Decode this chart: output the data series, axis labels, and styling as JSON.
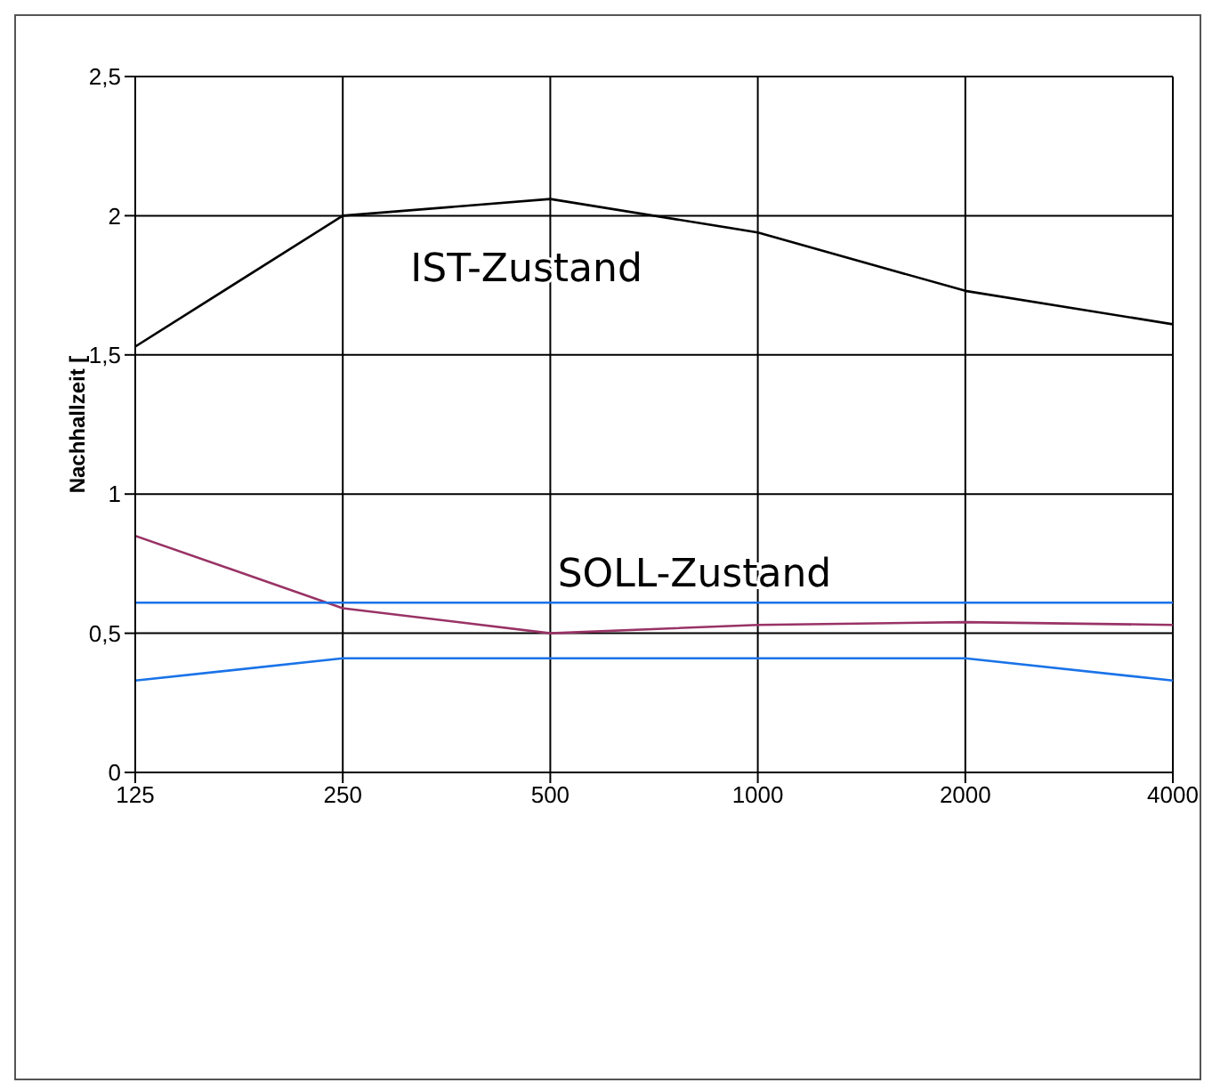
{
  "chart_data": {
    "type": "line",
    "ylabel": "Nachhallzeit [",
    "categories": [
      "125",
      "250",
      "500",
      "1000",
      "2000",
      "4000"
    ],
    "series": [
      {
        "color": "#000000",
        "values": [
          1.53,
          2.0,
          2.06,
          1.94,
          1.73,
          1.61
        ]
      },
      {
        "color": "#993366",
        "values": [
          0.85,
          0.59,
          0.5,
          0.53,
          0.54,
          0.53
        ]
      },
      {
        "color": "#1a73e8",
        "values": [
          0.61,
          0.61,
          0.61,
          0.61,
          0.61,
          0.61
        ]
      },
      {
        "color": "#1a73e8",
        "values": [
          0.33,
          0.41,
          0.41,
          0.41,
          0.41,
          0.33
        ]
      }
    ],
    "annotations": [
      "IST-Zustand",
      "SOLL-Zustand"
    ],
    "ylim": [
      0,
      2.5
    ],
    "yticks": [
      0,
      {
        "value": 0.5,
        "label": "0,5"
      },
      1,
      {
        "value": 1.5,
        "label": "1,5"
      },
      2,
      {
        "value": 2.5,
        "label": "2,5"
      }
    ],
    "grid": true,
    "marker": "none",
    "line_style": "solid",
    "legend": false
  }
}
